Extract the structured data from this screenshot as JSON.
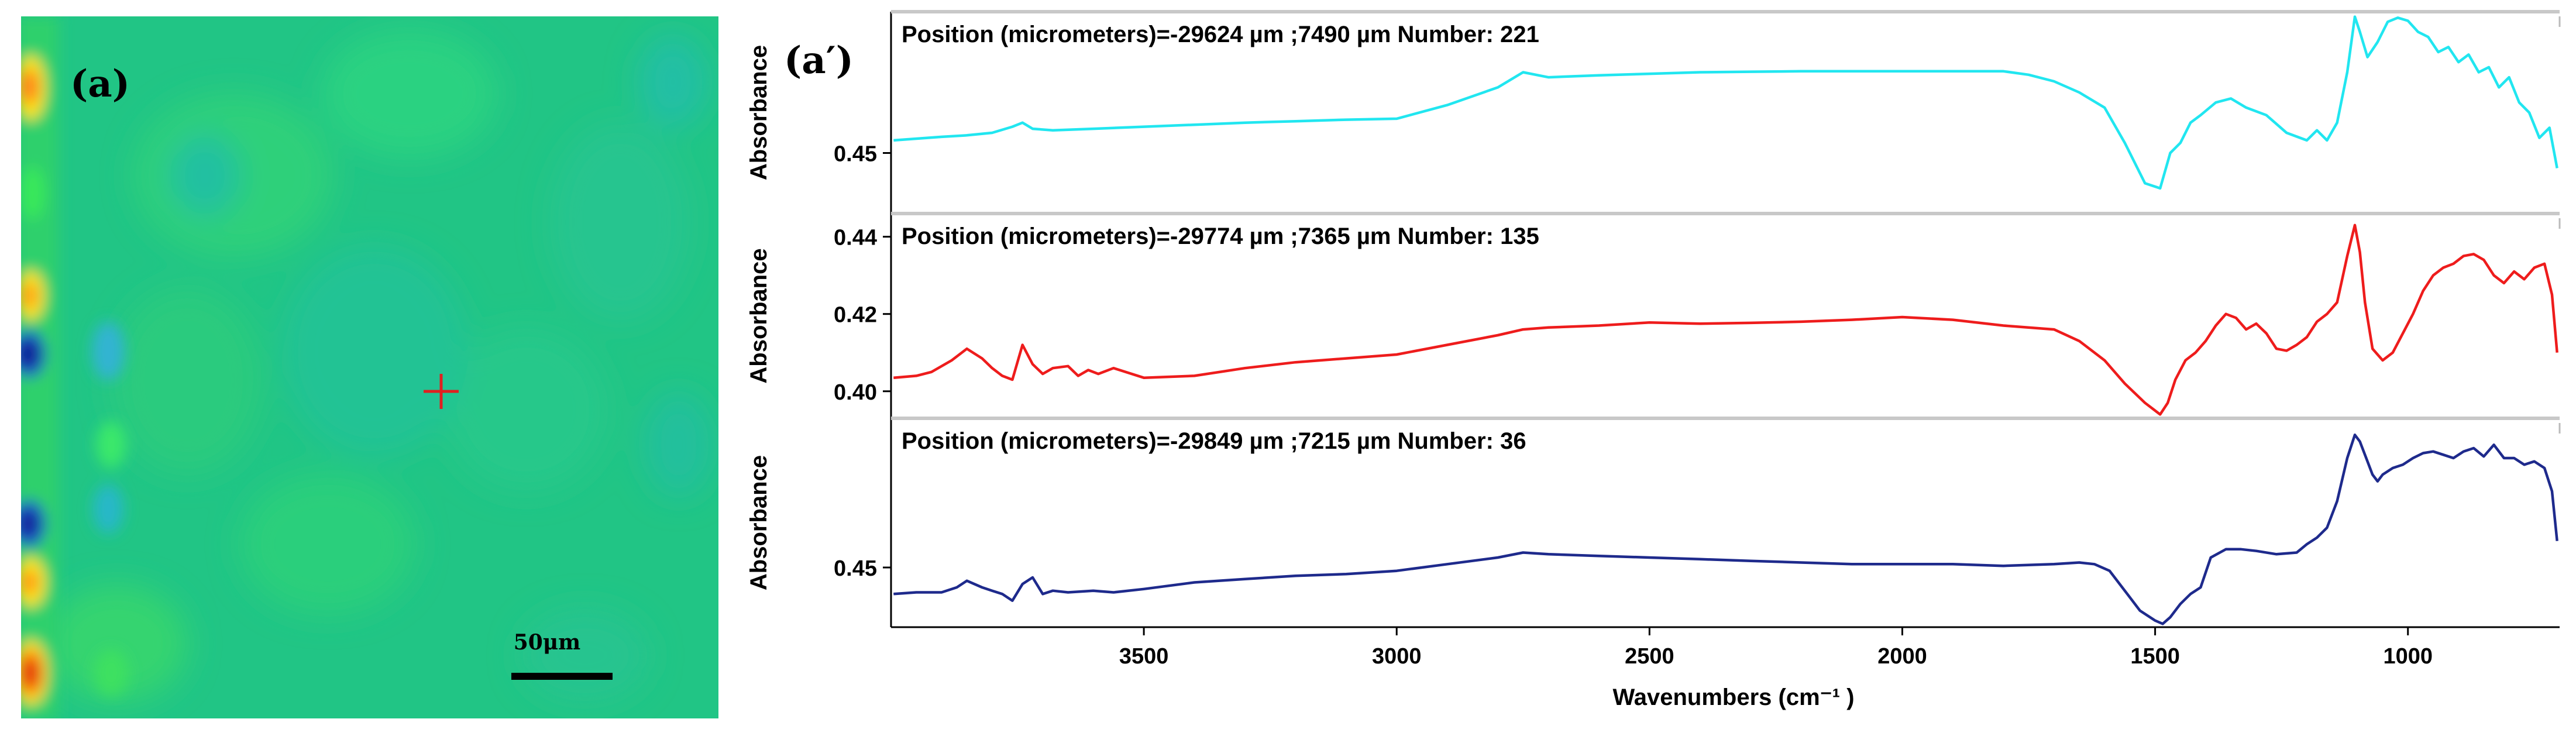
{
  "map_panel": {
    "label": "(a)",
    "scale_bar_label": "50μm",
    "marker_color": "#e02020"
  },
  "spectra_panel": {
    "label": "(a′)"
  },
  "chart_data": {
    "type": "line",
    "xlabel": "Wavenumbers (cm⁻¹ )",
    "xlim": [
      4000,
      700
    ],
    "xticks": [
      3500,
      3000,
      2500,
      2000,
      1500,
      1000
    ],
    "subplots": [
      {
        "title": "Position (micrometers)=-29624 µm ;7490 µm  Number: 221",
        "ylabel": "Absorbance",
        "color": "#21e6f0",
        "ylim": [
          0.438,
          0.478
        ],
        "yticks": [
          "0.45"
        ],
        "x": [
          3995,
          3900,
          3850,
          3800,
          3760,
          3740,
          3720,
          3680,
          3600,
          3500,
          3400,
          3300,
          3200,
          3100,
          3000,
          2900,
          2800,
          2750,
          2700,
          2600,
          2500,
          2400,
          2300,
          2200,
          2100,
          2000,
          1900,
          1800,
          1750,
          1700,
          1650,
          1600,
          1560,
          1520,
          1490,
          1470,
          1450,
          1430,
          1410,
          1380,
          1350,
          1320,
          1280,
          1240,
          1200,
          1180,
          1160,
          1140,
          1120,
          1105,
          1095,
          1080,
          1060,
          1040,
          1020,
          1000,
          980,
          960,
          940,
          920,
          900,
          880,
          860,
          840,
          820,
          800,
          780,
          760,
          740,
          720,
          705
        ],
        "values": [
          0.4525,
          0.4532,
          0.4535,
          0.454,
          0.4552,
          0.456,
          0.4548,
          0.4545,
          0.4548,
          0.4552,
          0.4556,
          0.456,
          0.4563,
          0.4566,
          0.4568,
          0.4595,
          0.463,
          0.466,
          0.465,
          0.4654,
          0.4657,
          0.466,
          0.4661,
          0.4662,
          0.4662,
          0.4662,
          0.4662,
          0.4662,
          0.4655,
          0.4642,
          0.462,
          0.459,
          0.452,
          0.444,
          0.443,
          0.45,
          0.452,
          0.456,
          0.4575,
          0.46,
          0.4608,
          0.459,
          0.4575,
          0.454,
          0.4525,
          0.4545,
          0.4525,
          0.456,
          0.466,
          0.477,
          0.474,
          0.469,
          0.472,
          0.476,
          0.4768,
          0.4762,
          0.474,
          0.473,
          0.47,
          0.471,
          0.468,
          0.4695,
          0.466,
          0.467,
          0.463,
          0.465,
          0.46,
          0.458,
          0.453,
          0.455,
          0.447
        ]
      },
      {
        "title": "Position (micrometers)=-29774 µm ;7365 µm  Number: 135",
        "ylabel": "Absorbance",
        "color": "#ee1c1c",
        "ylim": [
          0.393,
          0.446
        ],
        "yticks": [
          "0.40",
          "0.42",
          "0.44"
        ],
        "x": [
          3995,
          3950,
          3920,
          3880,
          3850,
          3820,
          3800,
          3780,
          3760,
          3740,
          3720,
          3700,
          3680,
          3650,
          3630,
          3610,
          3590,
          3560,
          3500,
          3400,
          3300,
          3200,
          3100,
          3000,
          2900,
          2800,
          2750,
          2700,
          2600,
          2500,
          2400,
          2300,
          2200,
          2100,
          2000,
          1900,
          1800,
          1700,
          1650,
          1600,
          1560,
          1520,
          1490,
          1475,
          1460,
          1440,
          1420,
          1400,
          1380,
          1360,
          1340,
          1320,
          1300,
          1280,
          1260,
          1240,
          1220,
          1200,
          1180,
          1160,
          1140,
          1120,
          1105,
          1095,
          1085,
          1070,
          1050,
          1030,
          1010,
          990,
          970,
          950,
          930,
          910,
          890,
          870,
          850,
          830,
          810,
          790,
          770,
          750,
          730,
          715,
          705
        ],
        "values": [
          0.4035,
          0.404,
          0.405,
          0.408,
          0.411,
          0.4085,
          0.406,
          0.404,
          0.403,
          0.412,
          0.407,
          0.4045,
          0.406,
          0.4065,
          0.404,
          0.4055,
          0.4045,
          0.406,
          0.4035,
          0.404,
          0.406,
          0.4075,
          0.4085,
          0.4095,
          0.412,
          0.4145,
          0.416,
          0.4165,
          0.417,
          0.4178,
          0.4175,
          0.4177,
          0.418,
          0.4185,
          0.4192,
          0.4185,
          0.417,
          0.416,
          0.413,
          0.408,
          0.402,
          0.397,
          0.394,
          0.397,
          0.403,
          0.408,
          0.41,
          0.413,
          0.417,
          0.42,
          0.419,
          0.416,
          0.4175,
          0.415,
          0.411,
          0.4105,
          0.412,
          0.414,
          0.418,
          0.42,
          0.423,
          0.435,
          0.443,
          0.436,
          0.423,
          0.411,
          0.408,
          0.41,
          0.415,
          0.42,
          0.426,
          0.43,
          0.432,
          0.433,
          0.435,
          0.4355,
          0.434,
          0.43,
          0.428,
          0.431,
          0.429,
          0.432,
          0.433,
          0.425,
          0.41
        ]
      },
      {
        "title": "Position (micrometers)=-29849 µm ;7215 µm  Number: 36",
        "ylabel": "Absorbance",
        "color": "#1e2a8c",
        "ylim": [
          0.432,
          0.495
        ],
        "yticks": [
          "0.45"
        ],
        "x": [
          3995,
          3950,
          3900,
          3870,
          3850,
          3820,
          3800,
          3780,
          3760,
          3740,
          3720,
          3700,
          3680,
          3650,
          3600,
          3560,
          3500,
          3400,
          3300,
          3200,
          3100,
          3000,
          2900,
          2800,
          2750,
          2700,
          2600,
          2500,
          2400,
          2300,
          2200,
          2100,
          2000,
          1900,
          1800,
          1700,
          1650,
          1620,
          1590,
          1560,
          1530,
          1500,
          1485,
          1470,
          1450,
          1430,
          1410,
          1390,
          1360,
          1330,
          1300,
          1260,
          1220,
          1200,
          1180,
          1160,
          1140,
          1120,
          1105,
          1095,
          1080,
          1070,
          1060,
          1050,
          1030,
          1010,
          990,
          970,
          950,
          930,
          910,
          890,
          870,
          850,
          830,
          810,
          790,
          770,
          750,
          730,
          715,
          705
        ],
        "values": [
          0.442,
          0.4425,
          0.4425,
          0.444,
          0.446,
          0.444,
          0.443,
          0.442,
          0.44,
          0.445,
          0.447,
          0.442,
          0.443,
          0.4425,
          0.443,
          0.4425,
          0.4435,
          0.4455,
          0.4465,
          0.4475,
          0.448,
          0.449,
          0.451,
          0.453,
          0.4545,
          0.454,
          0.4535,
          0.453,
          0.4525,
          0.452,
          0.4515,
          0.451,
          0.451,
          0.451,
          0.4505,
          0.451,
          0.4515,
          0.451,
          0.449,
          0.443,
          0.437,
          0.434,
          0.433,
          0.435,
          0.439,
          0.442,
          0.444,
          0.453,
          0.4555,
          0.4555,
          0.455,
          0.454,
          0.4545,
          0.457,
          0.459,
          0.462,
          0.47,
          0.483,
          0.49,
          0.488,
          0.482,
          0.478,
          0.476,
          0.478,
          0.48,
          0.481,
          0.483,
          0.4845,
          0.485,
          0.484,
          0.483,
          0.485,
          0.486,
          0.4835,
          0.487,
          0.483,
          0.483,
          0.481,
          0.482,
          0.48,
          0.473,
          0.458
        ]
      }
    ]
  }
}
